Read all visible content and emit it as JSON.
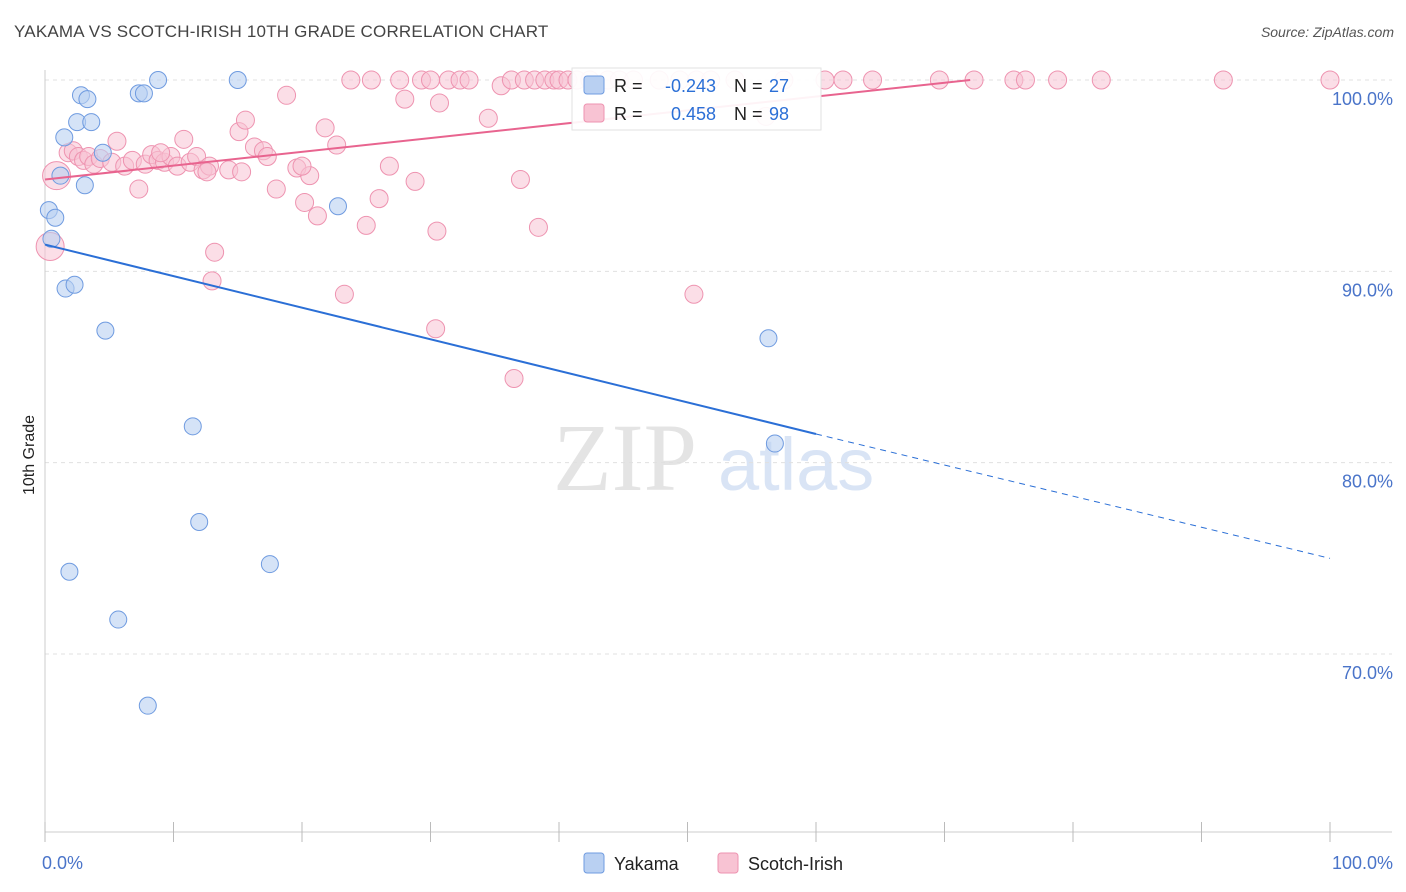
{
  "title": "YAKAMA VS SCOTCH-IRISH 10TH GRADE CORRELATION CHART",
  "source": "Source: ZipAtlas.com",
  "watermark": {
    "zip": "ZIP",
    "atlas": "atlas"
  },
  "colors": {
    "yakama_fill": "#b9d0f2",
    "yakama_stroke": "#6f9be0",
    "yakama_line": "#2b6fd6",
    "scotch_fill": "#f8c3d3",
    "scotch_stroke": "#ee93b0",
    "scotch_line": "#e8648f",
    "tick_text": "#4a74c9",
    "grid": "#e0e0e0"
  },
  "stats_legend": {
    "yakama": {
      "r_label": "R =",
      "r_value": "-0.243",
      "n_label": "N =",
      "n_value": "27"
    },
    "scotch": {
      "r_label": "R =",
      "r_value": "0.458",
      "n_label": "N =",
      "n_value": "98"
    }
  },
  "chart_data": {
    "type": "scatter",
    "title": "YAKAMA VS SCOTCH-IRISH 10TH GRADE CORRELATION CHART",
    "xlabel": "",
    "ylabel": "10th Grade",
    "xlim": [
      0,
      100
    ],
    "ylim": [
      60,
      102
    ],
    "x_tick_labels": [
      "0.0%",
      "100.0%"
    ],
    "y_ticks": [
      70,
      80,
      90,
      100
    ],
    "y_tick_labels": [
      "70.0%",
      "80.0%",
      "90.0%",
      "100.0%"
    ],
    "grid": true,
    "legend": [
      "Yakama",
      "Scotch-Irish"
    ],
    "series": [
      {
        "name": "Yakama",
        "trend": {
          "x0": 0,
          "y0": 91.4,
          "x1": 60,
          "y1": 81.5,
          "dashed_to_x": 100,
          "dashed_to_y": 75.0
        },
        "points": [
          [
            0.3,
            93.2
          ],
          [
            0.8,
            92.8
          ],
          [
            0.5,
            91.7
          ],
          [
            1.2,
            95.0
          ],
          [
            1.5,
            97.0
          ],
          [
            2.5,
            97.8
          ],
          [
            2.8,
            99.2
          ],
          [
            3.3,
            99.0
          ],
          [
            3.6,
            97.8
          ],
          [
            3.1,
            94.5
          ],
          [
            4.5,
            96.2
          ],
          [
            7.3,
            99.3
          ],
          [
            7.7,
            99.3
          ],
          [
            8.8,
            100.0
          ],
          [
            15.0,
            100.0
          ],
          [
            1.6,
            89.1
          ],
          [
            2.3,
            89.3
          ],
          [
            4.7,
            86.9
          ],
          [
            11.5,
            81.9
          ],
          [
            12.0,
            76.9
          ],
          [
            17.5,
            74.7
          ],
          [
            1.9,
            74.3
          ],
          [
            5.7,
            71.8
          ],
          [
            8.0,
            67.3
          ],
          [
            22.8,
            93.4
          ],
          [
            56.8,
            81.0
          ],
          [
            56.3,
            86.5
          ]
        ]
      },
      {
        "name": "Scotch-Irish",
        "trend": {
          "x0": 0,
          "y0": 94.8,
          "x1": 72,
          "y1": 100.0
        },
        "points": [
          [
            0.4,
            91.3
          ],
          [
            0.9,
            95.0
          ],
          [
            1.8,
            96.2
          ],
          [
            2.2,
            96.3
          ],
          [
            2.6,
            96.0
          ],
          [
            3.0,
            95.8
          ],
          [
            3.4,
            96.0
          ],
          [
            3.8,
            95.6
          ],
          [
            4.3,
            95.9
          ],
          [
            5.2,
            95.7
          ],
          [
            5.6,
            96.8
          ],
          [
            6.2,
            95.5
          ],
          [
            6.8,
            95.8
          ],
          [
            7.3,
            94.3
          ],
          [
            7.8,
            95.6
          ],
          [
            8.3,
            96.1
          ],
          [
            8.8,
            95.8
          ],
          [
            9.3,
            95.7
          ],
          [
            9.8,
            96.0
          ],
          [
            10.3,
            95.5
          ],
          [
            10.8,
            96.9
          ],
          [
            11.3,
            95.7
          ],
          [
            11.8,
            96.0
          ],
          [
            12.3,
            95.3
          ],
          [
            12.8,
            95.5
          ],
          [
            14.3,
            95.3
          ],
          [
            15.3,
            95.2
          ],
          [
            15.1,
            97.3
          ],
          [
            15.6,
            97.9
          ],
          [
            16.3,
            96.5
          ],
          [
            17.0,
            96.3
          ],
          [
            17.3,
            96.0
          ],
          [
            18.0,
            94.3
          ],
          [
            18.8,
            99.2
          ],
          [
            19.6,
            95.4
          ],
          [
            20.2,
            93.6
          ],
          [
            20.6,
            95.0
          ],
          [
            21.2,
            92.9
          ],
          [
            21.8,
            97.5
          ],
          [
            22.7,
            96.6
          ],
          [
            23.8,
            100.0
          ],
          [
            25.4,
            100.0
          ],
          [
            25.0,
            92.4
          ],
          [
            26.0,
            93.8
          ],
          [
            26.8,
            95.5
          ],
          [
            27.6,
            100.0
          ],
          [
            28.0,
            99.0
          ],
          [
            28.8,
            94.7
          ],
          [
            29.3,
            100.0
          ],
          [
            30.0,
            100.0
          ],
          [
            30.5,
            92.1
          ],
          [
            30.7,
            98.8
          ],
          [
            31.4,
            100.0
          ],
          [
            32.3,
            100.0
          ],
          [
            33.0,
            100.0
          ],
          [
            34.5,
            98.0
          ],
          [
            35.5,
            99.7
          ],
          [
            36.3,
            100.0
          ],
          [
            37.0,
            94.8
          ],
          [
            37.3,
            100.0
          ],
          [
            38.1,
            100.0
          ],
          [
            38.4,
            92.3
          ],
          [
            38.9,
            100.0
          ],
          [
            39.6,
            100.0
          ],
          [
            40.0,
            100.0
          ],
          [
            40.7,
            100.0
          ],
          [
            41.4,
            100.0
          ],
          [
            42.4,
            100.0
          ],
          [
            43.8,
            100.0
          ],
          [
            44.7,
            100.0
          ],
          [
            45.8,
            100.0
          ],
          [
            47.8,
            100.0
          ],
          [
            49.4,
            100.0
          ],
          [
            50.7,
            100.0
          ],
          [
            51.8,
            100.0
          ],
          [
            53.7,
            100.0
          ],
          [
            56.1,
            98.1
          ],
          [
            57.5,
            100.0
          ],
          [
            60.7,
            100.0
          ],
          [
            62.1,
            100.0
          ],
          [
            64.4,
            100.0
          ],
          [
            69.6,
            100.0
          ],
          [
            72.3,
            100.0
          ],
          [
            75.4,
            100.0
          ],
          [
            76.3,
            100.0
          ],
          [
            78.8,
            100.0
          ],
          [
            82.2,
            100.0
          ],
          [
            91.7,
            100.0
          ],
          [
            100.0,
            100.0
          ],
          [
            13.2,
            91.0
          ],
          [
            13.0,
            89.5
          ],
          [
            23.3,
            88.8
          ],
          [
            30.4,
            87.0
          ],
          [
            36.5,
            84.4
          ],
          [
            50.5,
            88.8
          ],
          [
            12.6,
            95.2
          ],
          [
            20.0,
            95.5
          ],
          [
            9.0,
            96.2
          ]
        ]
      }
    ]
  },
  "bottom_legend": [
    {
      "label": "Yakama"
    },
    {
      "label": "Scotch-Irish"
    }
  ]
}
